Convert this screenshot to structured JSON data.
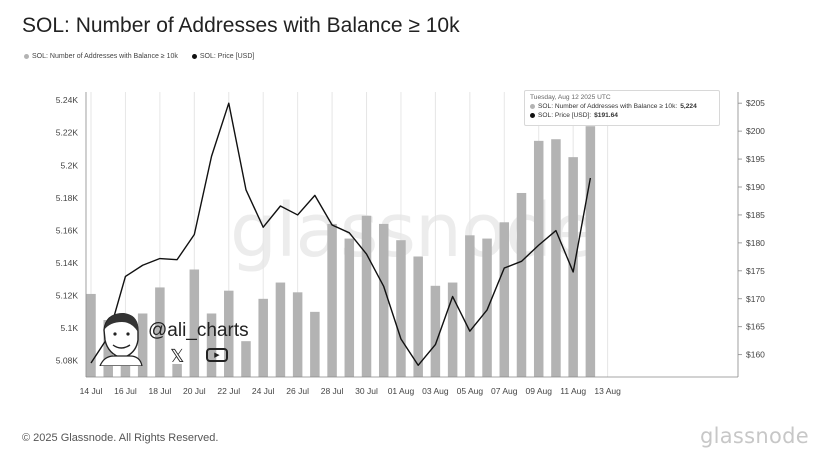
{
  "title": "SOL: Number of Addresses with Balance ≥ 10k",
  "legend": [
    {
      "label": "SOL: Number of Addresses with Balance ≥ 10k",
      "color": "#b3b3b3"
    },
    {
      "label": "SOL: Price [USD]",
      "color": "#111111"
    }
  ],
  "tooltip": {
    "date": "Tuesday, Aug 12 2025 UTC",
    "row1_label": "SOL: Number of Addresses with Balance ≥ 10k:",
    "row1_value": "5,224",
    "row2_label": "SOL: Price [USD]:",
    "row2_value": "$191.64"
  },
  "watermark": "glassnode",
  "author": {
    "handle": "@ali_charts",
    "x_icon": "𝕏",
    "youtube_icon": "▶"
  },
  "footer": {
    "copyright": "© 2025 Glassnode. All Rights Reserved.",
    "logo": "glassnode"
  },
  "colors": {
    "bars": "#b3b3b3",
    "line": "#111111",
    "grid": "#e6e6e6"
  },
  "chart_data": {
    "type": "bar",
    "x_tick_labels": [
      "14 Jul",
      "16 Jul",
      "18 Jul",
      "20 Jul",
      "22 Jul",
      "24 Jul",
      "26 Jul",
      "28 Jul",
      "30 Jul",
      "01 Aug",
      "03 Aug",
      "05 Aug",
      "07 Aug",
      "09 Aug",
      "11 Aug",
      "13 Aug"
    ],
    "left_axis": {
      "ticks": [
        "5.08K",
        "5.1K",
        "5.12K",
        "5.14K",
        "5.16K",
        "5.18K",
        "5.2K",
        "5.22K",
        "5.24K"
      ],
      "ylim": [
        5070,
        5245
      ]
    },
    "right_axis": {
      "ticks": [
        "$160",
        "$165",
        "$170",
        "$175",
        "$180",
        "$185",
        "$190",
        "$195",
        "$200",
        "$205"
      ],
      "ylim": [
        156,
        207
      ]
    },
    "x": [
      "2025-07-14",
      "2025-07-15",
      "2025-07-16",
      "2025-07-17",
      "2025-07-18",
      "2025-07-19",
      "2025-07-20",
      "2025-07-21",
      "2025-07-22",
      "2025-07-23",
      "2025-07-24",
      "2025-07-25",
      "2025-07-26",
      "2025-07-27",
      "2025-07-28",
      "2025-07-29",
      "2025-07-30",
      "2025-07-31",
      "2025-08-01",
      "2025-08-02",
      "2025-08-03",
      "2025-08-04",
      "2025-08-05",
      "2025-08-06",
      "2025-08-07",
      "2025-08-08",
      "2025-08-09",
      "2025-08-10",
      "2025-08-11",
      "2025-08-12"
    ],
    "series": [
      {
        "name": "SOL: Number of Addresses with Balance ≥ 10k",
        "type": "bar",
        "axis": "left",
        "values": [
          5121,
          5105,
          5102,
          5109,
          5125,
          5078,
          5136,
          5109,
          5123,
          5092,
          5118,
          5128,
          5122,
          5110,
          5164,
          5155,
          5169,
          5164,
          5154,
          5144,
          5126,
          5128,
          5157,
          5155,
          5165,
          5183,
          5215,
          5216,
          5205,
          5224
        ]
      },
      {
        "name": "SOL: Price [USD]",
        "type": "line",
        "axis": "right",
        "values": [
          158.5,
          163.2,
          174.0,
          176.0,
          177.2,
          177.0,
          181.5,
          195.5,
          205.0,
          189.5,
          182.8,
          186.6,
          185.0,
          188.5,
          183.2,
          181.8,
          178.0,
          172.2,
          162.8,
          158.1,
          161.8,
          170.4,
          164.2,
          168.0,
          175.5,
          176.7,
          179.6,
          182.2,
          174.8,
          191.6
        ]
      }
    ]
  }
}
